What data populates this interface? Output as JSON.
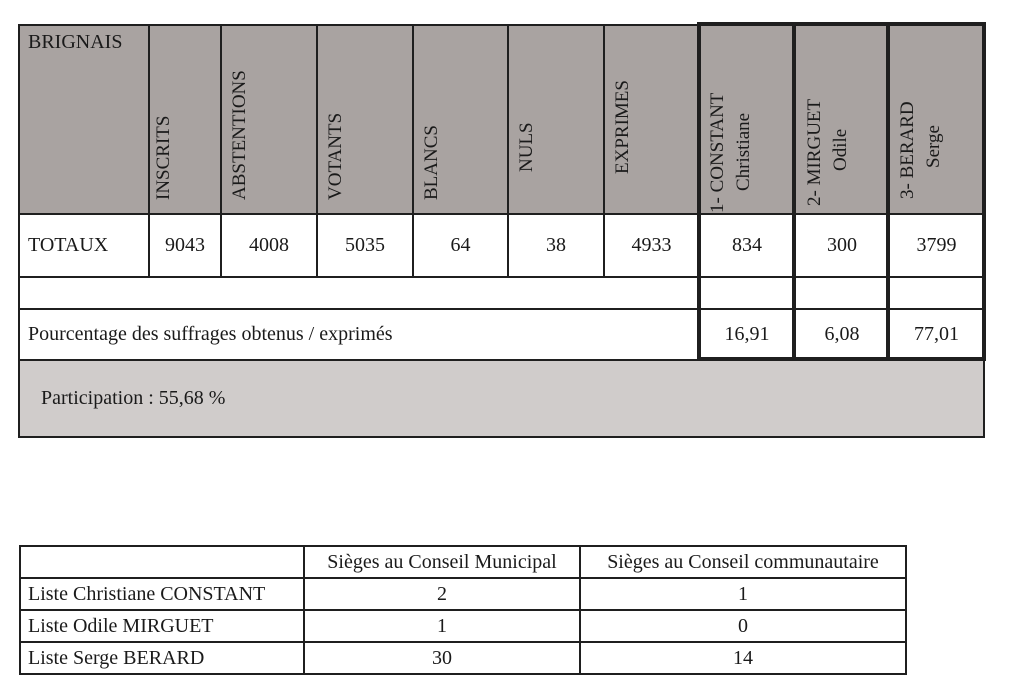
{
  "commune": "BRIGNAIS",
  "headers": {
    "inscrits": "INSCRITS",
    "abstentions": "ABSTENTIONS",
    "votants": "VOTANTS",
    "blancs": "BLANCS",
    "nuls": "NULS",
    "exprimes": "EXPRIMES",
    "cand1_line1": "1- CONSTANT",
    "cand1_line2": "Christiane",
    "cand2_line1": "2- MIRGUET",
    "cand2_line2": "Odile",
    "cand3_line1": "3- BERARD",
    "cand3_line2": "Serge"
  },
  "totals": {
    "label": "TOTAUX",
    "inscrits": "9043",
    "abstentions": "4008",
    "votants": "5035",
    "blancs": "64",
    "nuls": "38",
    "exprimes": "4933",
    "cand1": "834",
    "cand2": "300",
    "cand3": "3799"
  },
  "percentage": {
    "label": "Pourcentage des suffrages obtenus / exprimés",
    "cand1": "16,91",
    "cand2": "6,08",
    "cand3": "77,01"
  },
  "participation": "Participation : 55,68 %",
  "seats": {
    "col_municipal": "Sièges au Conseil Municipal",
    "col_communautaire": "Sièges au Conseil communautaire",
    "rows": [
      {
        "liste": "Liste Christiane CONSTANT",
        "municipal": "2",
        "communautaire": "1"
      },
      {
        "liste": "Liste Odile MIRGUET",
        "municipal": "1",
        "communautaire": "0"
      },
      {
        "liste": "Liste Serge BERARD",
        "municipal": "30",
        "communautaire": "14"
      }
    ]
  }
}
